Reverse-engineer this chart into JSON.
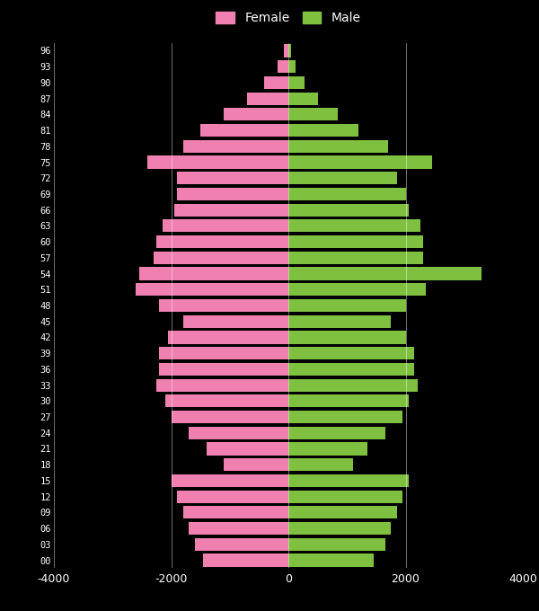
{
  "background_color": "#000000",
  "female_color": "#f080b0",
  "male_color": "#80c040",
  "grid_color": "#ffffff",
  "tick_color": "#ffffff",
  "ages": [
    "00",
    "03",
    "06",
    "09",
    "12",
    "15",
    "18",
    "21",
    "24",
    "27",
    "30",
    "33",
    "36",
    "39",
    "42",
    "45",
    "48",
    "51",
    "54",
    "57",
    "60",
    "63",
    "66",
    "69",
    "72",
    "75",
    "78",
    "81",
    "84",
    "87",
    "90",
    "93",
    "96"
  ],
  "female": [
    1450,
    1600,
    1700,
    1800,
    1900,
    2000,
    1100,
    1400,
    1700,
    2000,
    2100,
    2250,
    2200,
    2200,
    2050,
    1800,
    2200,
    2600,
    2550,
    2300,
    2250,
    2150,
    1950,
    1900,
    1900,
    2400,
    1800,
    1500,
    1100,
    700,
    420,
    180,
    80
  ],
  "male": [
    1450,
    1650,
    1750,
    1850,
    1950,
    2050,
    1100,
    1350,
    1650,
    1950,
    2050,
    2200,
    2150,
    2150,
    2000,
    1750,
    2000,
    2350,
    3300,
    2300,
    2300,
    2250,
    2050,
    2000,
    1850,
    2450,
    1700,
    1200,
    850,
    500,
    280,
    130,
    40
  ],
  "xlim": [
    -4000,
    4000
  ],
  "xticks": [
    -4000,
    -2000,
    0,
    2000,
    4000
  ],
  "legend_female": "Female",
  "legend_male": "Male"
}
